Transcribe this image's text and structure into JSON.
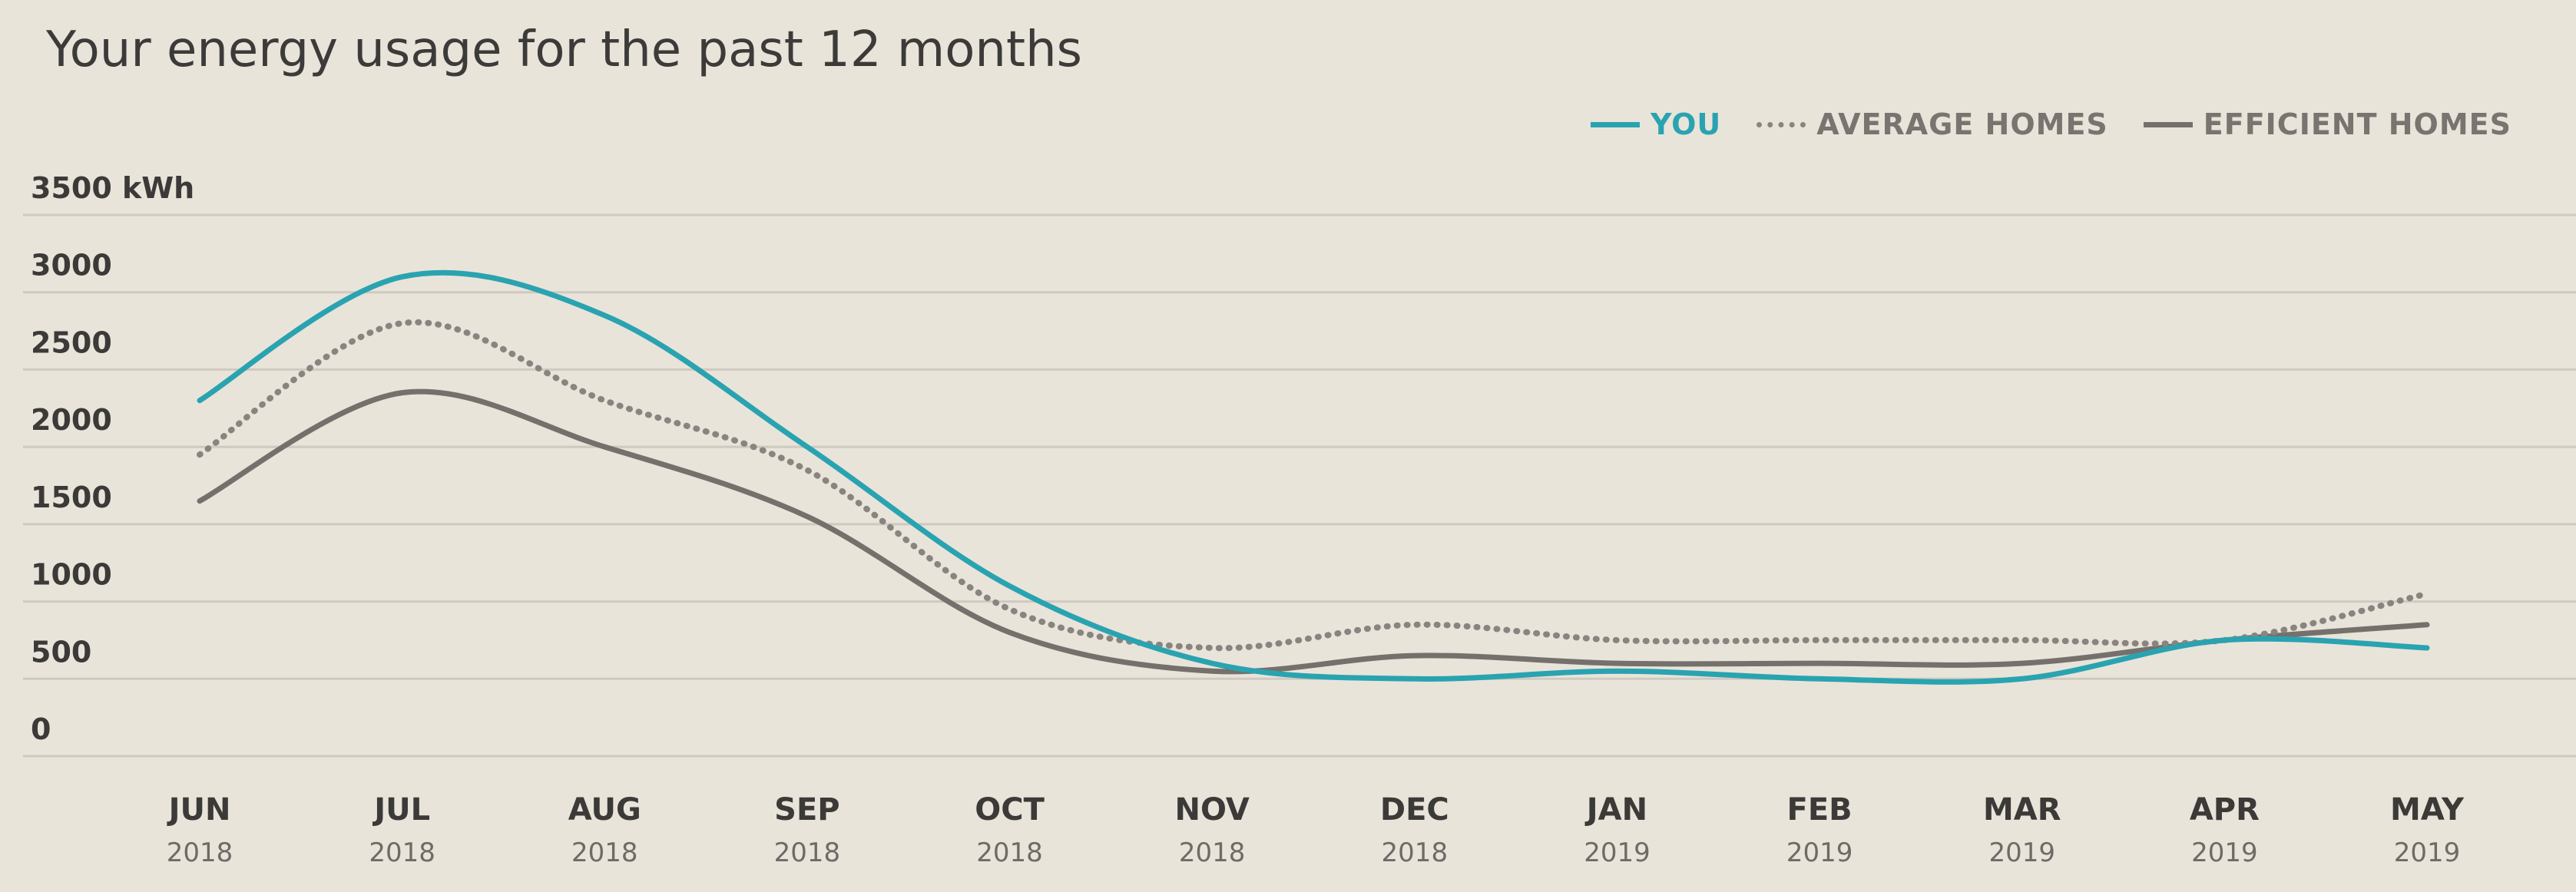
{
  "title": "Your energy usage for the past 12 months",
  "legend": [
    {
      "label": "YOU",
      "color": "#2aa3b1",
      "style": "solid"
    },
    {
      "label": "AVERAGE HOMES",
      "color": "#8a8480",
      "style": "dotted"
    },
    {
      "label": "EFFICIENT HOMES",
      "color": "#75706c",
      "style": "solid"
    }
  ],
  "chart_data": {
    "type": "line",
    "title": "Your energy usage for the past 12 months",
    "ylabel": "",
    "y_unit": "kWh",
    "ylim": [
      0,
      3500
    ],
    "yticks": [
      0,
      500,
      1000,
      1500,
      2000,
      2500,
      3000,
      3500
    ],
    "ytick_labels": [
      "0",
      "500",
      "1000",
      "1500",
      "2000",
      "2500",
      "3000",
      "3500 kWh"
    ],
    "categories": [
      "JUN",
      "JUL",
      "AUG",
      "SEP",
      "OCT",
      "NOV",
      "DEC",
      "JAN",
      "FEB",
      "MAR",
      "APR",
      "MAY"
    ],
    "category_years": [
      "2018",
      "2018",
      "2018",
      "2018",
      "2018",
      "2018",
      "2018",
      "2019",
      "2019",
      "2019",
      "2019",
      "2019"
    ],
    "grid": true,
    "legend_position": "top-right",
    "series": [
      {
        "name": "YOU",
        "color": "#2aa3b1",
        "style": "solid",
        "values": [
          2300,
          3100,
          2850,
          2000,
          1100,
          600,
          500,
          550,
          500,
          500,
          750,
          700
        ]
      },
      {
        "name": "AVERAGE HOMES",
        "color": "#8a8480",
        "style": "dotted",
        "values": [
          1950,
          2800,
          2300,
          1850,
          950,
          700,
          850,
          750,
          750,
          750,
          750,
          1050
        ]
      },
      {
        "name": "EFFICIENT HOMES",
        "color": "#75706c",
        "style": "solid",
        "values": [
          1650,
          2350,
          2000,
          1550,
          800,
          550,
          650,
          600,
          600,
          600,
          750,
          850
        ]
      }
    ]
  }
}
